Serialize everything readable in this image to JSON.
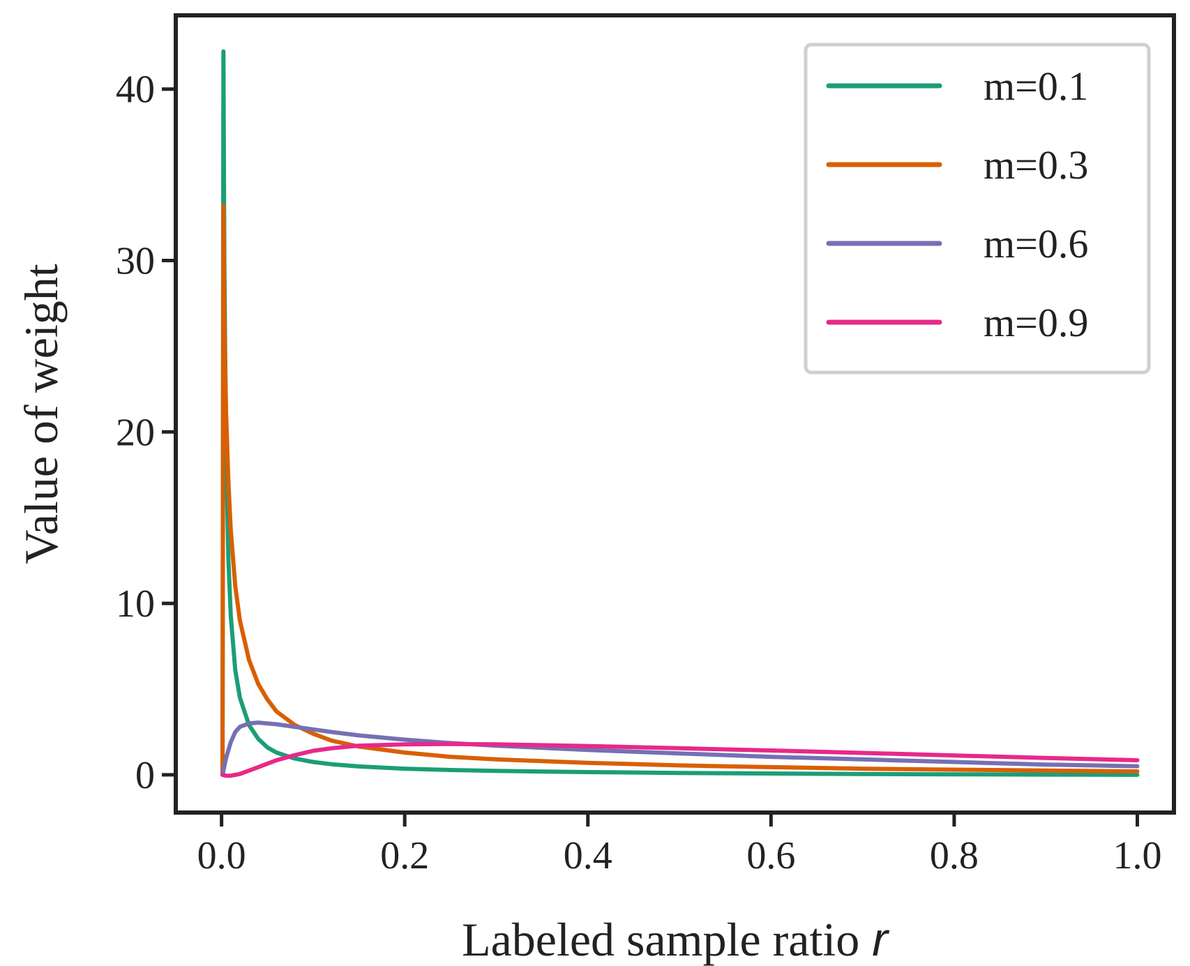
{
  "chart_data": {
    "type": "line",
    "xlabel": "Labeled sample ratio",
    "xlabel_var": "r",
    "ylabel": "Value of weight",
    "xlim": [
      -0.05,
      1.04
    ],
    "ylim": [
      -2.2,
      44.3
    ],
    "xticks": [
      0.0,
      0.2,
      0.4,
      0.6,
      0.8,
      1.0
    ],
    "xtick_labels": [
      "0.0",
      "0.2",
      "0.4",
      "0.6",
      "0.8",
      "1.0"
    ],
    "yticks": [
      0,
      10,
      20,
      30,
      40
    ],
    "ytick_labels": [
      "0",
      "10",
      "20",
      "30",
      "40"
    ],
    "legend_position": "top-right",
    "series": [
      {
        "name": "m=0.1",
        "color": "#1b9e77",
        "x": [
          0.001,
          0.002,
          0.003,
          0.005,
          0.0075,
          0.01,
          0.015,
          0.02,
          0.03,
          0.04,
          0.05,
          0.06,
          0.08,
          0.1,
          0.12,
          0.15,
          0.2,
          0.25,
          0.3,
          0.4,
          0.5,
          0.6,
          0.7,
          0.8,
          0.9,
          1.0
        ],
        "values": [
          0,
          42.2,
          30.0,
          18.5,
          12.5,
          9.3,
          6.1,
          4.5,
          2.9,
          2.1,
          1.6,
          1.3,
          0.95,
          0.75,
          0.62,
          0.49,
          0.36,
          0.28,
          0.23,
          0.16,
          0.11,
          0.08,
          0.05,
          0.03,
          0.015,
          0.0
        ]
      },
      {
        "name": "m=0.3",
        "color": "#d95f02",
        "x": [
          0.001,
          0.002,
          0.003,
          0.005,
          0.0075,
          0.01,
          0.015,
          0.02,
          0.03,
          0.04,
          0.05,
          0.06,
          0.08,
          0.1,
          0.12,
          0.15,
          0.2,
          0.25,
          0.3,
          0.4,
          0.5,
          0.6,
          0.7,
          0.8,
          0.9,
          1.0
        ],
        "values": [
          0,
          33.2,
          26.5,
          21.0,
          17.0,
          14.3,
          11.0,
          9.0,
          6.7,
          5.3,
          4.4,
          3.7,
          2.9,
          2.4,
          2.0,
          1.65,
          1.3,
          1.05,
          0.9,
          0.7,
          0.55,
          0.45,
          0.36,
          0.3,
          0.25,
          0.2
        ]
      },
      {
        "name": "m=0.6",
        "color": "#7570b3",
        "x": [
          0.001,
          0.005,
          0.01,
          0.015,
          0.02,
          0.03,
          0.04,
          0.05,
          0.06,
          0.08,
          0.1,
          0.12,
          0.15,
          0.2,
          0.25,
          0.3,
          0.4,
          0.5,
          0.6,
          0.7,
          0.8,
          0.9,
          1.0
        ],
        "values": [
          0,
          1.0,
          1.9,
          2.5,
          2.8,
          3.0,
          3.05,
          3.0,
          2.95,
          2.8,
          2.65,
          2.5,
          2.3,
          2.05,
          1.85,
          1.7,
          1.45,
          1.25,
          1.05,
          0.9,
          0.75,
          0.6,
          0.5
        ]
      },
      {
        "name": "m=0.9",
        "color": "#e7298a",
        "x": [
          0.001,
          0.005,
          0.01,
          0.02,
          0.03,
          0.04,
          0.05,
          0.06,
          0.08,
          0.1,
          0.12,
          0.15,
          0.2,
          0.25,
          0.3,
          0.4,
          0.5,
          0.6,
          0.7,
          0.8,
          0.9,
          1.0
        ],
        "values": [
          0,
          -0.05,
          -0.05,
          0.05,
          0.25,
          0.45,
          0.65,
          0.85,
          1.15,
          1.4,
          1.55,
          1.7,
          1.78,
          1.8,
          1.78,
          1.68,
          1.55,
          1.42,
          1.28,
          1.13,
          0.98,
          0.85
        ]
      }
    ]
  }
}
